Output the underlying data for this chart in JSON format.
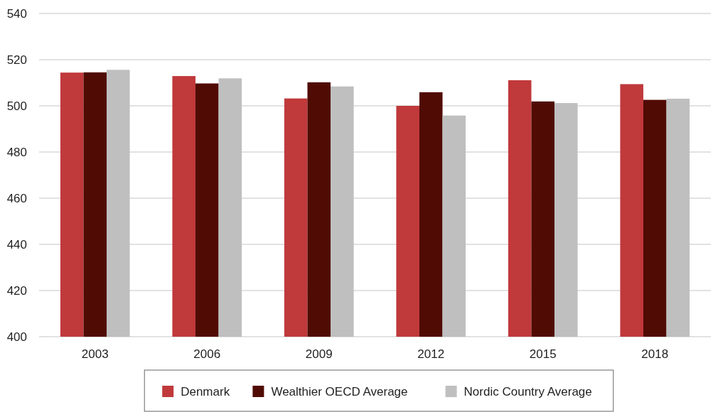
{
  "chart_data": {
    "type": "bar",
    "categories": [
      "2003",
      "2006",
      "2009",
      "2012",
      "2015",
      "2018"
    ],
    "series": [
      {
        "name": "Denmark",
        "color": "#c0393b",
        "values": [
          514.4,
          512.9,
          503.2,
          500,
          511.1,
          509.4
        ]
      },
      {
        "name": "Wealthier OECD Average",
        "color": "#500b04",
        "values": [
          514.5,
          509.7,
          510.2,
          505.9,
          501.9,
          502.6
        ]
      },
      {
        "name": "Nordic Country Average",
        "color": "#bfbfbf",
        "values": [
          515.6,
          511.9,
          508.4,
          495.8,
          501.2,
          503.1
        ]
      }
    ],
    "ylim": [
      400,
      540
    ],
    "yticks": [
      400,
      420,
      440,
      460,
      480,
      500,
      520,
      540
    ],
    "grid": "y",
    "legend": "bottom"
  }
}
